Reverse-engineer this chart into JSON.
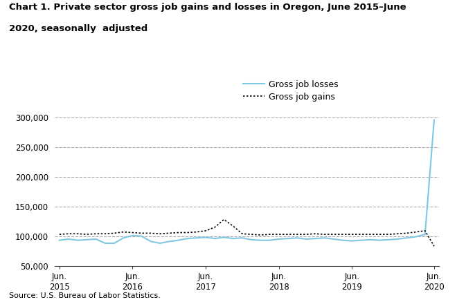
{
  "title_line1": "Chart 1. Private sector gross job gains and losses in Oregon, June 2015–June",
  "title_line2": "2020, seasonally  adjusted",
  "source": "Source: U.S. Bureau of Labor Statistics.",
  "legend_labels": [
    "Gross job losses",
    "Gross job gains"
  ],
  "losses_color": "#7EC8E3",
  "gains_color": "#000000",
  "background_color": "#ffffff",
  "ylim": [
    50000,
    315000
  ],
  "yticks": [
    50000,
    100000,
    150000,
    200000,
    250000,
    300000
  ],
  "ytick_labels": [
    "50,000",
    "100,000",
    "150,000",
    "200,000",
    "250,000",
    "300,000"
  ],
  "x_labels": [
    "Jun.\n2015",
    "Jun.\n2016",
    "Jun.\n2017",
    "Jun.\n2018",
    "Jun.\n2019",
    "Jun.\n2020"
  ],
  "gross_job_losses": [
    93000,
    95000,
    93000,
    94000,
    95000,
    88000,
    88000,
    97000,
    101000,
    100000,
    91000,
    88000,
    91000,
    93000,
    96000,
    97000,
    98000,
    96000,
    98000,
    96000,
    97000,
    94000,
    93000,
    93000,
    95000,
    96000,
    97000,
    95000,
    96000,
    97000,
    95000,
    93000,
    92000,
    93000,
    94000,
    93000,
    94000,
    95000,
    97000,
    99000,
    103000,
    296000
  ],
  "gross_job_gains": [
    103000,
    104000,
    104000,
    103000,
    104000,
    104000,
    105000,
    107000,
    106000,
    105000,
    105000,
    104000,
    105000,
    106000,
    106000,
    107000,
    109000,
    115000,
    128000,
    117000,
    104000,
    103000,
    102000,
    103000,
    103000,
    103000,
    103000,
    103000,
    104000,
    103000,
    103000,
    103000,
    103000,
    103000,
    103000,
    103000,
    103000,
    104000,
    105000,
    107000,
    109000,
    83000
  ],
  "n_points": 42,
  "x_tick_positions": [
    0,
    8,
    16,
    24,
    32,
    41
  ]
}
